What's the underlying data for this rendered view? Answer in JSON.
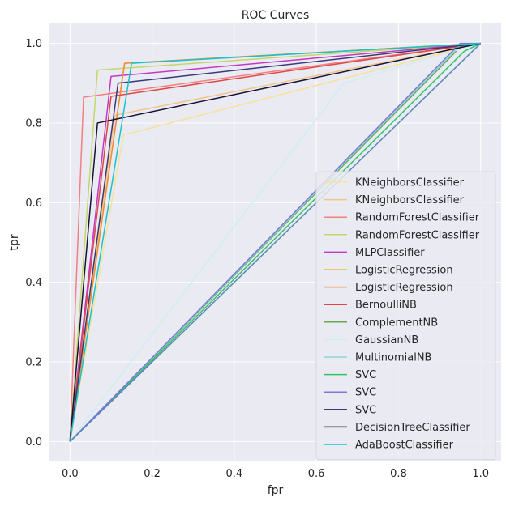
{
  "chart_data": {
    "type": "line",
    "title": "ROC Curves",
    "xlabel": "fpr",
    "ylabel": "tpr",
    "xlim": [
      -0.05,
      1.05
    ],
    "ylim": [
      -0.05,
      1.05
    ],
    "xticks": [
      "0.0",
      "0.2",
      "0.4",
      "0.6",
      "0.8",
      "1.0"
    ],
    "yticks": [
      "0.0",
      "0.2",
      "0.4",
      "0.6",
      "0.8",
      "1.0"
    ],
    "grid": true,
    "legend_position": "lower-right",
    "series": [
      {
        "name": "KNeighborsClassifier",
        "color": "#f7e19a",
        "x": [
          0,
          0.13,
          1
        ],
        "y": [
          0,
          0.77,
          1
        ]
      },
      {
        "name": "KNeighborsClassifier",
        "color": "#f5c48a",
        "x": [
          0,
          0.11,
          1
        ],
        "y": [
          0,
          0.82,
          1
        ]
      },
      {
        "name": "RandomForestClassifier",
        "color": "#f47f7f",
        "x": [
          0,
          0.033,
          1
        ],
        "y": [
          0,
          0.865,
          1
        ]
      },
      {
        "name": "RandomForestClassifier",
        "color": "#c6d66a",
        "x": [
          0,
          0.067,
          1
        ],
        "y": [
          0,
          0.933,
          1
        ]
      },
      {
        "name": "MLPClassifier",
        "color": "#c339c3",
        "x": [
          0,
          0.1,
          1
        ],
        "y": [
          0,
          0.917,
          1
        ]
      },
      {
        "name": "LogisticRegression",
        "color": "#efb93d",
        "x": [
          0,
          0.133,
          1
        ],
        "y": [
          0,
          0.95,
          1
        ]
      },
      {
        "name": "LogisticRegression",
        "color": "#ec8e3c",
        "x": [
          0,
          0.133,
          1
        ],
        "y": [
          0,
          0.95,
          1
        ]
      },
      {
        "name": "BernoulliNB",
        "color": "#de4848",
        "x": [
          0,
          0.1,
          1
        ],
        "y": [
          0,
          0.867,
          1
        ]
      },
      {
        "name": "ComplementNB",
        "color": "#6aa84f",
        "x": [
          0,
          0.95,
          1
        ],
        "y": [
          0,
          0.99,
          1
        ]
      },
      {
        "name": "GaussianNB",
        "color": "#cfeef3",
        "x": [
          0,
          0.667,
          1
        ],
        "y": [
          0,
          0.9,
          1
        ]
      },
      {
        "name": "MultinomialNB",
        "color": "#8fd3dd",
        "x": [
          0,
          0.95,
          1
        ],
        "y": [
          0,
          0.995,
          1
        ]
      },
      {
        "name": "SVC",
        "color": "#2fc46a",
        "x": [
          0,
          0.96,
          1
        ],
        "y": [
          0,
          0.98,
          1
        ]
      },
      {
        "name": "SVC",
        "color": "#7a7ad8",
        "x": [
          0,
          0.95,
          1
        ],
        "y": [
          0,
          1.0,
          1
        ]
      },
      {
        "name": "SVC",
        "color": "#3a3a78",
        "x": [
          0,
          0.117,
          1
        ],
        "y": [
          0,
          0.9,
          1
        ]
      },
      {
        "name": "DecisionTreeClassifier",
        "color": "#151535",
        "x": [
          0,
          0.067,
          1
        ],
        "y": [
          0,
          0.8,
          1
        ]
      },
      {
        "name": "AdaBoostClassifier",
        "color": "#19c2c9",
        "x": [
          0,
          0.15,
          1
        ],
        "y": [
          0,
          0.95,
          1
        ]
      }
    ],
    "extra_lines": [
      {
        "color": "#5b86b8",
        "x": [
          0,
          1
        ],
        "y": [
          0,
          1
        ]
      }
    ]
  }
}
